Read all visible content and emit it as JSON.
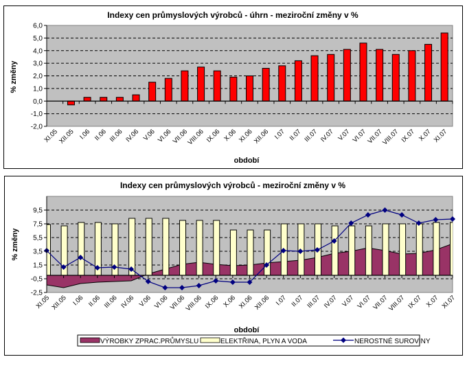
{
  "chart_data": [
    {
      "type": "bar",
      "title": "Indexy cen průmyslových výrobců - úhrn - meziroční změny v %",
      "xlabel": "období",
      "ylabel": "% změny",
      "ylim": [
        -2.0,
        6.0
      ],
      "yticks": [
        "6,0",
        "5,0",
        "4,0",
        "3,0",
        "2,0",
        "1,0",
        "0,0",
        "-1,0",
        "-2,0"
      ],
      "ytick_values": [
        6,
        5,
        4,
        3,
        2,
        1,
        0,
        -1,
        -2
      ],
      "grid": true,
      "categories": [
        "XI.05",
        "XII.05",
        "I.06",
        "II.06",
        "III.06",
        "IV.06",
        "V.06",
        "VI.06",
        "VII.06",
        "VIII.06",
        "IX.06",
        "X.06",
        "XI.06",
        "XII.06",
        "I.07",
        "II.07",
        "III.07",
        "IV.07",
        "V.07",
        "VI.07",
        "VII.07",
        "VIII.07",
        "IX.07",
        "X.07",
        "XI.07"
      ],
      "values": [
        0.0,
        -0.3,
        0.3,
        0.3,
        0.3,
        0.5,
        1.5,
        1.8,
        2.4,
        2.7,
        2.4,
        1.9,
        2.0,
        2.6,
        2.8,
        3.2,
        3.6,
        3.7,
        4.1,
        4.6,
        4.1,
        3.7,
        4.0,
        4.5,
        5.4
      ],
      "colors": {
        "bar": "#FF0000",
        "plot_bg": "#C0C0C0"
      }
    },
    {
      "type": "bar",
      "title": "Indexy cen průmyslových výrobců - meziroční změny v %",
      "xlabel": "období",
      "ylabel": "% změny",
      "ylim": [
        -2.5,
        11.5
      ],
      "yticks": [
        "9,5",
        "7,5",
        "5,5",
        "3,5",
        "1,5",
        "-0,5",
        "-2,5"
      ],
      "ytick_values": [
        9.5,
        7.5,
        5.5,
        3.5,
        1.5,
        -0.5,
        -2.5
      ],
      "grid": true,
      "legend_position": "bottom",
      "categories": [
        "XI.05",
        "XII.05",
        "I.06",
        "II.06",
        "III.06",
        "IV.06",
        "V.06",
        "VI.06",
        "VII.06",
        "VIII.06",
        "IX.06",
        "X.06",
        "XI.06",
        "XII.06",
        "I.07",
        "II.07",
        "III.07",
        "IV.07",
        "V.07",
        "VI.07",
        "VII.07",
        "VIII.07",
        "IX.07",
        "X.07",
        "XI.07"
      ],
      "series": [
        {
          "name": "VÝROBKY ZPRAC.PRŮMYSLU",
          "type": "area",
          "color": "#993366",
          "values": [
            -1.4,
            -1.8,
            -1.2,
            -1.0,
            -0.9,
            -0.8,
            0.2,
            0.9,
            1.6,
            1.9,
            1.6,
            1.4,
            1.5,
            1.8,
            2.0,
            2.2,
            2.6,
            3.2,
            3.5,
            4.0,
            3.6,
            3.1,
            3.2,
            3.7,
            4.6
          ]
        },
        {
          "name": "ELEKTŘINA, PLYN A  VODA",
          "type": "bar",
          "color": "#FFFFCC",
          "values": [
            7.4,
            7.2,
            7.7,
            7.7,
            7.5,
            8.3,
            8.3,
            8.3,
            8.0,
            8.0,
            8.0,
            6.6,
            6.6,
            6.6,
            7.5,
            7.5,
            7.5,
            7.2,
            7.2,
            7.2,
            7.5,
            7.5,
            7.5,
            7.7,
            7.7
          ]
        },
        {
          "name": "NEROSTNÉ  SUROVINY",
          "type": "line",
          "color": "#000080",
          "marker": "diamond",
          "values": [
            3.6,
            1.2,
            2.6,
            1.1,
            1.2,
            0.9,
            -0.9,
            -1.8,
            -1.8,
            -1.5,
            -0.8,
            -1.0,
            -1.0,
            1.5,
            3.6,
            3.5,
            3.7,
            5.0,
            7.6,
            8.8,
            9.5,
            8.8,
            7.6,
            8.1,
            8.2
          ]
        }
      ],
      "colors": {
        "plot_bg": "#C0C0C0"
      }
    }
  ]
}
